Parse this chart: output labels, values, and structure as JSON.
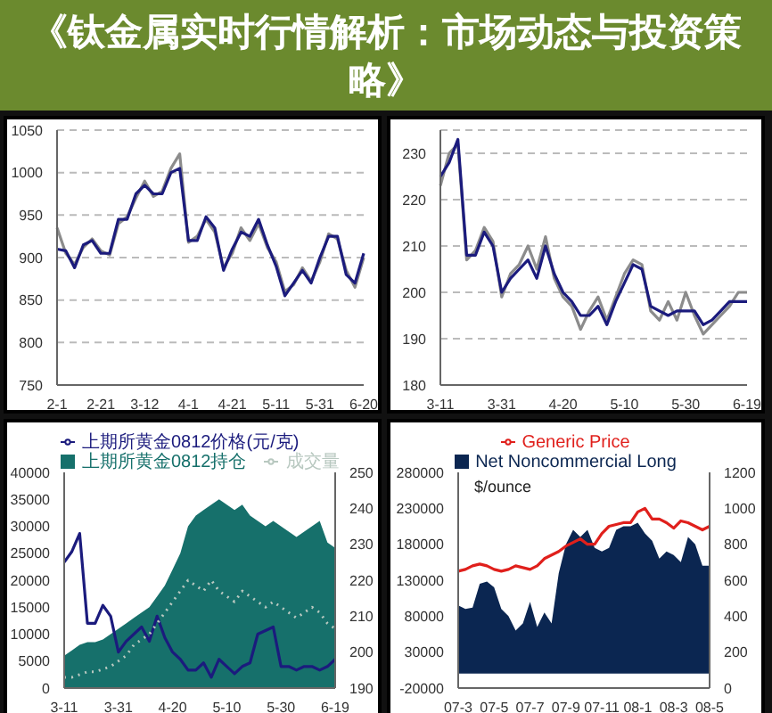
{
  "chart_data": [
    {
      "type": "other",
      "title": "《钛金属实时行情解析：市场动态与投资策略》"
    },
    {
      "type": "line",
      "categories": [
        "2-1",
        null,
        null,
        null,
        null,
        "2-21",
        null,
        null,
        null,
        null,
        "3-12",
        null,
        null,
        null,
        null,
        "4-1",
        null,
        null,
        null,
        null,
        "4-21",
        null,
        null,
        null,
        null,
        "5-11",
        null,
        null,
        null,
        null,
        "5-31",
        null,
        null,
        null,
        null,
        "6-20"
      ],
      "series": [
        {
          "color": "#8c8c8c",
          "values": [
            935,
            905,
            892,
            912,
            922,
            908,
            903,
            940,
            948,
            970,
            990,
            972,
            978,
            1005,
            1022,
            918,
            925,
            945,
            930,
            888,
            905,
            935,
            920,
            940,
            912,
            895,
            860,
            868,
            888,
            872,
            895,
            928,
            922,
            885,
            865,
            900
          ]
        },
        {
          "color": "#1b1b7d",
          "values": [
            910,
            908,
            888,
            915,
            920,
            905,
            905,
            945,
            945,
            975,
            985,
            975,
            975,
            1000,
            1005,
            920,
            920,
            948,
            935,
            885,
            910,
            930,
            925,
            945,
            915,
            890,
            855,
            870,
            885,
            870,
            900,
            925,
            925,
            880,
            870,
            905
          ]
        }
      ],
      "ylim": [
        750,
        1050
      ],
      "yticks": [
        750,
        800,
        850,
        900,
        950,
        1000,
        1050
      ],
      "grid": "y",
      "marker": "none"
    },
    {
      "type": "line",
      "categories": [
        "3-11",
        null,
        null,
        null,
        null,
        null,
        null,
        "3-31",
        null,
        null,
        null,
        null,
        null,
        null,
        "4-20",
        null,
        null,
        null,
        null,
        null,
        null,
        "5-10",
        null,
        null,
        null,
        null,
        null,
        null,
        "5-30",
        null,
        null,
        null,
        null,
        null,
        null,
        "6-19"
      ],
      "series": [
        {
          "color": "#8c8c8c",
          "values": [
            223,
            230,
            232,
            207,
            209,
            214,
            211,
            199,
            204,
            206,
            210,
            205,
            212,
            203,
            199,
            197,
            192,
            196,
            199,
            194,
            199,
            204,
            207,
            206,
            196,
            194,
            198,
            194,
            200,
            195,
            191,
            193,
            195,
            197,
            200,
            200
          ]
        },
        {
          "color": "#1b1b7d",
          "values": [
            225,
            228,
            233,
            208,
            208,
            213,
            210,
            200,
            203,
            205,
            207,
            203,
            210,
            204,
            200,
            198,
            195,
            195,
            197,
            193,
            198,
            202,
            206,
            205,
            197,
            196,
            195,
            196,
            196,
            196,
            193,
            194,
            196,
            198,
            198,
            198
          ]
        }
      ],
      "ylim": [
        180,
        235
      ],
      "yticks": [
        180,
        190,
        200,
        210,
        220,
        230
      ],
      "grid": "y",
      "marker": "none"
    },
    {
      "type": "area",
      "categories": [
        "3-11",
        null,
        null,
        null,
        null,
        null,
        null,
        "3-31",
        null,
        null,
        null,
        null,
        null,
        null,
        "4-20",
        null,
        null,
        null,
        null,
        null,
        null,
        "5-10",
        null,
        null,
        null,
        null,
        null,
        null,
        "5-30",
        null,
        null,
        null,
        null,
        null,
        null,
        "6-19"
      ],
      "series": [
        {
          "name": "上期所黄金0812持仓",
          "type": "area",
          "color": "#16706b",
          "values": [
            6000,
            7000,
            8000,
            8500,
            8500,
            9000,
            10000,
            11000,
            12000,
            13000,
            14000,
            15000,
            17000,
            19000,
            22000,
            25000,
            30000,
            32000,
            33000,
            34000,
            35000,
            34000,
            33000,
            34000,
            32000,
            31000,
            30000,
            31000,
            30000,
            29000,
            28000,
            29000,
            30000,
            31000,
            27000,
            26000
          ]
        },
        {
          "name": "上期所黄金0812价格(元/克)",
          "type": "line",
          "axis": "y2",
          "color": "#1b1b7d",
          "values": [
            225,
            228,
            233,
            208,
            208,
            213,
            210,
            200,
            203,
            205,
            207,
            203,
            210,
            204,
            200,
            198,
            195,
            195,
            197,
            193,
            198,
            196,
            194,
            196,
            197,
            205,
            206,
            207,
            196,
            196,
            195,
            196,
            196,
            195,
            196,
            198
          ]
        },
        {
          "name": "成交量",
          "type": "line",
          "line_style": "dotted",
          "color": "#b8c8c0",
          "values": [
            2000,
            2000,
            2500,
            3000,
            3000,
            3500,
            4000,
            5000,
            6000,
            8000,
            9000,
            10000,
            12000,
            14000,
            16000,
            18000,
            20000,
            19000,
            18000,
            20000,
            18000,
            17000,
            16000,
            18000,
            17000,
            16000,
            15000,
            16000,
            15000,
            14000,
            13000,
            14000,
            15000,
            14000,
            12000,
            11000
          ]
        }
      ],
      "ylim": [
        0,
        40000
      ],
      "yticks": [
        0,
        5000,
        10000,
        15000,
        20000,
        25000,
        30000,
        35000,
        40000
      ],
      "y2lim": [
        190,
        250
      ],
      "y2ticks": [
        190,
        200,
        210,
        220,
        230,
        240,
        250
      ],
      "legend": "top left",
      "marker": "none"
    },
    {
      "type": "area",
      "categories": [
        "07-3",
        null,
        null,
        null,
        null,
        "07-5",
        null,
        null,
        null,
        null,
        "07-7",
        null,
        null,
        null,
        null,
        "07-9",
        null,
        null,
        null,
        null,
        "07-11",
        null,
        null,
        null,
        null,
        "08-1",
        null,
        null,
        null,
        null,
        "08-3",
        null,
        null,
        null,
        null,
        "08-5"
      ],
      "series": [
        {
          "name": "Net Noncommercial Long",
          "type": "area",
          "color": "#0b2651",
          "values": [
            95000,
            90000,
            92000,
            125000,
            128000,
            120000,
            90000,
            80000,
            60000,
            70000,
            100000,
            65000,
            85000,
            70000,
            140000,
            180000,
            200000,
            190000,
            200000,
            175000,
            170000,
            175000,
            200000,
            205000,
            205000,
            210000,
            195000,
            185000,
            160000,
            170000,
            165000,
            155000,
            190000,
            180000,
            150000,
            150000
          ]
        },
        {
          "name": "Generic Price",
          "type": "line",
          "axis": "y2",
          "color": "#e0201c",
          "values": [
            650,
            660,
            680,
            690,
            680,
            660,
            650,
            660,
            680,
            670,
            660,
            680,
            720,
            740,
            760,
            790,
            810,
            830,
            800,
            800,
            860,
            900,
            910,
            920,
            920,
            980,
            1000,
            940,
            940,
            920,
            890,
            930,
            920,
            900,
            880,
            900
          ]
        }
      ],
      "ylim": [
        -20000,
        280000
      ],
      "yticks": [
        -20000,
        30000,
        80000,
        130000,
        180000,
        230000,
        280000
      ],
      "y2lim": [
        0,
        1200
      ],
      "y2ticks": [
        0,
        200,
        400,
        600,
        800,
        1000,
        1200
      ],
      "legend": "top",
      "marker": "none",
      "annotations": [
        "$/ounce"
      ]
    }
  ]
}
